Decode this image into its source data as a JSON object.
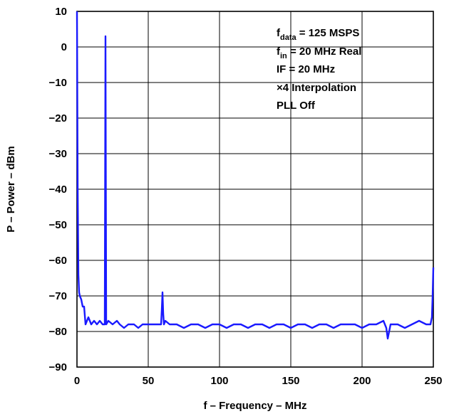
{
  "chart_data": {
    "type": "line",
    "title": "",
    "xlabel": "f – Frequency – MHz",
    "ylabel": "P – Power – dBm",
    "xlim": [
      0,
      250
    ],
    "ylim": [
      -90,
      10
    ],
    "xticks": [
      0,
      50,
      100,
      150,
      200,
      250
    ],
    "yticks": [
      10,
      0,
      -10,
      -20,
      -30,
      -40,
      -50,
      -60,
      -70,
      -80,
      -90
    ],
    "xtick_labels": [
      "0",
      "50",
      "100",
      "150",
      "200",
      "250"
    ],
    "ytick_labels": [
      "10",
      "0",
      "−10",
      "−20",
      "−30",
      "−40",
      "−50",
      "−60",
      "−70",
      "−80",
      "−90"
    ],
    "grid": true,
    "line_color": "#1a1aff",
    "annotation": {
      "line1_main": "f",
      "line1_sub": "data",
      "line1_rest": " = 125 MSPS",
      "line2_main": "f",
      "line2_sub": "in",
      "line2_rest": " = 20 MHz Real",
      "line3": "IF = 20 MHz",
      "line4": "×4 Interpolation",
      "line5": "PLL Off"
    },
    "series": [
      {
        "x": [
          0,
          0.5,
          1,
          1.5,
          2,
          3,
          4,
          5,
          6,
          7,
          8,
          10,
          12,
          14,
          16,
          18,
          19.5,
          20,
          20.5,
          22,
          25,
          28,
          30,
          33,
          36,
          40,
          43,
          46,
          50,
          53,
          56,
          59,
          59.5,
          60,
          60.5,
          61,
          62,
          65,
          70,
          75,
          80,
          85,
          90,
          95,
          100,
          105,
          110,
          115,
          120,
          125,
          130,
          135,
          140,
          145,
          150,
          155,
          160,
          165,
          170,
          175,
          180,
          185,
          190,
          195,
          200,
          205,
          210,
          215,
          217,
          218,
          220,
          225,
          230,
          235,
          240,
          245,
          248,
          249,
          249.5,
          250
        ],
        "y": [
          10,
          -40,
          -64,
          -69,
          -70,
          -71,
          -73,
          -73,
          -78,
          -77,
          -76,
          -78,
          -77,
          -78,
          -77,
          -78,
          -78,
          3,
          -78,
          -77,
          -78,
          -77,
          -78,
          -79,
          -78,
          -78,
          -79,
          -78,
          -78,
          -78,
          -78,
          -78,
          -74,
          -69,
          -75,
          -78,
          -77,
          -78,
          -78,
          -79,
          -78,
          -78,
          -79,
          -78,
          -78,
          -79,
          -78,
          -78,
          -79,
          -78,
          -78,
          -79,
          -78,
          -78,
          -79,
          -78,
          -78,
          -79,
          -78,
          -78,
          -79,
          -78,
          -78,
          -78,
          -79,
          -78,
          -78,
          -77,
          -79,
          -82,
          -78,
          -78,
          -79,
          -78,
          -77,
          -78,
          -78,
          -76,
          -70,
          -62
        ]
      }
    ]
  }
}
